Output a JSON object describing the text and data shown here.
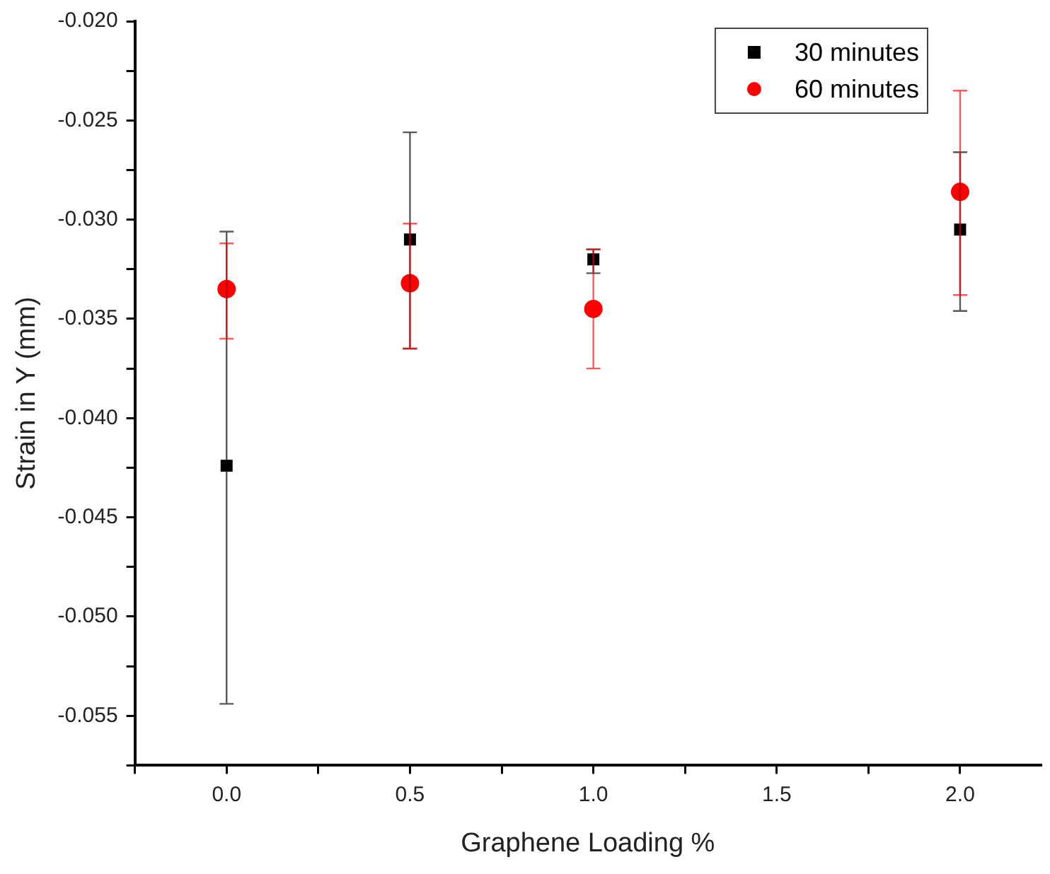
{
  "chart_data": {
    "type": "scatter",
    "xlabel": "Graphene Loading %",
    "ylabel": "Strain in Y (mm)",
    "xlim": [
      -0.25,
      2.22
    ],
    "xticks": [
      {
        "value": -0.25,
        "label": null
      },
      {
        "value": 0,
        "label": "0.0"
      },
      {
        "value": 0.25,
        "label": null
      },
      {
        "value": 0.5,
        "label": "0.5"
      },
      {
        "value": 0.75,
        "label": null
      },
      {
        "value": 1,
        "label": "1.0"
      },
      {
        "value": 1.25,
        "label": null
      },
      {
        "value": 1.5,
        "label": "1.5"
      },
      {
        "value": 1.75,
        "label": null
      },
      {
        "value": 2,
        "label": "2.0"
      }
    ],
    "ylim": [
      -0.0575,
      -0.02
    ],
    "yticks": [
      {
        "value": -0.0575,
        "label": null
      },
      {
        "value": -0.055,
        "label": "-0.055"
      },
      {
        "value": -0.0525,
        "label": null
      },
      {
        "value": -0.05,
        "label": "-0.050"
      },
      {
        "value": -0.0475,
        "label": null
      },
      {
        "value": -0.045,
        "label": "-0.045"
      },
      {
        "value": -0.0425,
        "label": null
      },
      {
        "value": -0.04,
        "label": "-0.040"
      },
      {
        "value": -0.0375,
        "label": null
      },
      {
        "value": -0.035,
        "label": "-0.035"
      },
      {
        "value": -0.0325,
        "label": null
      },
      {
        "value": -0.03,
        "label": "-0.030"
      },
      {
        "value": -0.0275,
        "label": null
      },
      {
        "value": -0.025,
        "label": "-0.025"
      },
      {
        "value": -0.0225,
        "label": null
      },
      {
        "value": -0.02,
        "label": "-0.020"
      }
    ],
    "x": [
      0,
      0.5,
      1,
      2
    ],
    "legend": "top right",
    "grid": false,
    "series": [
      {
        "name": "30 minutes",
        "color": "#000000",
        "marker": "square",
        "values": [
          -0.0424,
          -0.031,
          -0.032,
          -0.0305
        ],
        "errors": [
          [
            -0.0544,
            -0.0306
          ],
          [
            -0.0365,
            -0.0256
          ],
          [
            -0.0327,
            -0.0315
          ],
          [
            -0.0346,
            -0.0266
          ]
        ]
      },
      {
        "name": "60 minutes",
        "color": "#ff0000",
        "marker": "circle",
        "values": [
          -0.0335,
          -0.0332,
          -0.0345,
          -0.0286
        ],
        "errors": [
          [
            -0.036,
            -0.0312
          ],
          [
            -0.0365,
            -0.0302
          ],
          [
            -0.0375,
            -0.0315
          ],
          [
            -0.0338,
            -0.0235
          ]
        ]
      }
    ]
  }
}
